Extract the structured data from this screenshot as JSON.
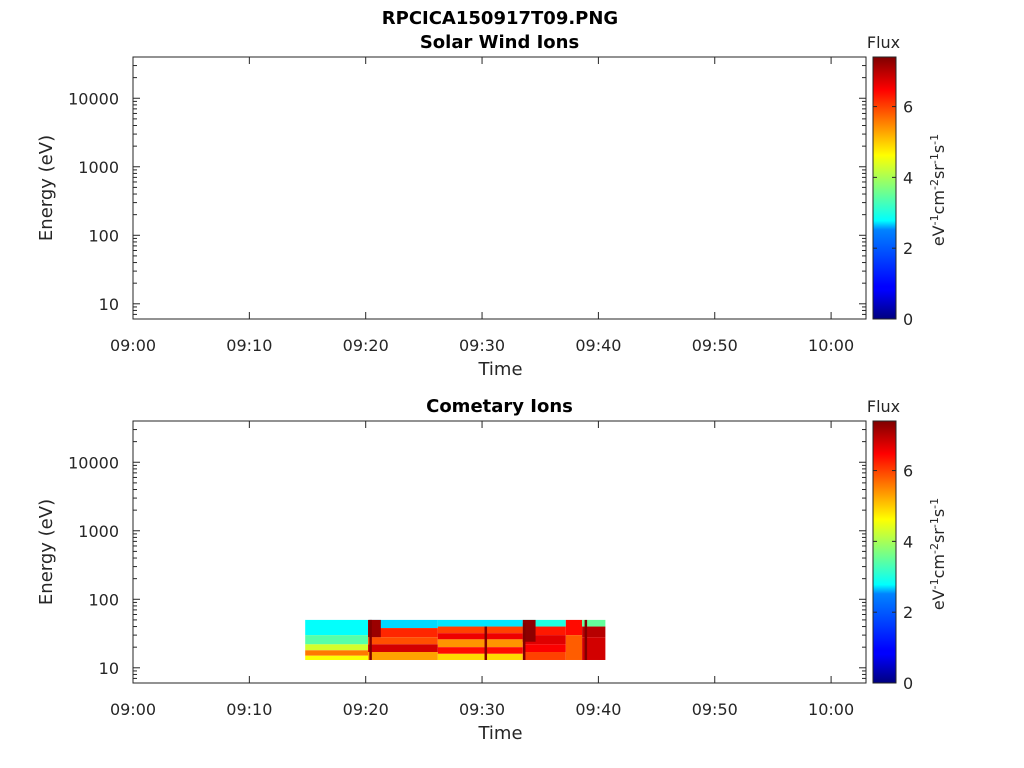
{
  "figure_title": "RPCICA150917T09.PNG",
  "chart_data": [
    {
      "type": "heatmap",
      "title": "Solar Wind Ions",
      "xlabel": "Time",
      "ylabel": "Energy (eV)",
      "x_ticks": [
        "09:00",
        "09:10",
        "09:20",
        "09:30",
        "09:40",
        "09:50",
        "10:00"
      ],
      "x_range_minutes": [
        0,
        63
      ],
      "y_scale": "log",
      "y_ticks": [
        "10",
        "100",
        "1000",
        "10000"
      ],
      "ylim": [
        6,
        40000
      ],
      "colorbar": {
        "title": "Flux",
        "ticks": [
          "0",
          "2",
          "4",
          "6"
        ],
        "range": [
          0,
          7.4
        ],
        "unit_base": [
          "eV",
          "cm",
          "sr",
          "s"
        ],
        "unit_exp": [
          "-1",
          "-2",
          "-1",
          "-1"
        ]
      },
      "blocks": []
    },
    {
      "type": "heatmap",
      "title": "Cometary Ions",
      "xlabel": "Time",
      "ylabel": "Energy (eV)",
      "x_ticks": [
        "09:00",
        "09:10",
        "09:20",
        "09:30",
        "09:40",
        "09:50",
        "10:00"
      ],
      "x_range_minutes": [
        0,
        63
      ],
      "y_scale": "log",
      "y_ticks": [
        "10",
        "100",
        "1000",
        "10000"
      ],
      "ylim": [
        6,
        40000
      ],
      "colorbar": {
        "title": "Flux",
        "ticks": [
          "0",
          "2",
          "4",
          "6"
        ],
        "range": [
          0,
          7.4
        ],
        "unit_base": [
          "eV",
          "cm",
          "sr",
          "s"
        ],
        "unit_exp": [
          "-1",
          "-2",
          "-1",
          "-1"
        ]
      },
      "data_time_range_minutes": [
        14.8,
        40.6
      ],
      "data_energy_range_eV": [
        13,
        50
      ],
      "blocks": [
        {
          "t0": 14.8,
          "t1": 20.2,
          "e0": 30,
          "e1": 50,
          "v": 2.8
        },
        {
          "t0": 14.8,
          "t1": 20.2,
          "e0": 22,
          "e1": 30,
          "v": 3.4
        },
        {
          "t0": 14.8,
          "t1": 20.2,
          "e0": 18,
          "e1": 22,
          "v": 4.3
        },
        {
          "t0": 14.8,
          "t1": 20.2,
          "e0": 15,
          "e1": 18,
          "v": 5.6
        },
        {
          "t0": 14.8,
          "t1": 20.2,
          "e0": 13,
          "e1": 15,
          "v": 4.6
        },
        {
          "t0": 20.2,
          "t1": 26.2,
          "e0": 38,
          "e1": 50,
          "v": 2.5
        },
        {
          "t0": 20.2,
          "t1": 26.2,
          "e0": 28,
          "e1": 38,
          "v": 6.2
        },
        {
          "t0": 20.2,
          "t1": 26.2,
          "e0": 22,
          "e1": 28,
          "v": 5.9
        },
        {
          "t0": 20.2,
          "t1": 26.2,
          "e0": 17,
          "e1": 22,
          "v": 6.8
        },
        {
          "t0": 20.2,
          "t1": 26.2,
          "e0": 13,
          "e1": 17,
          "v": 5.3
        },
        {
          "t0": 20.2,
          "t1": 21.3,
          "e0": 28,
          "e1": 50,
          "v": 7.2
        },
        {
          "t0": 26.2,
          "t1": 33.5,
          "e0": 40,
          "e1": 50,
          "v": 2.6
        },
        {
          "t0": 26.2,
          "t1": 33.5,
          "e0": 32,
          "e1": 40,
          "v": 6.0
        },
        {
          "t0": 26.2,
          "t1": 33.5,
          "e0": 26,
          "e1": 32,
          "v": 6.6
        },
        {
          "t0": 26.2,
          "t1": 33.5,
          "e0": 20,
          "e1": 26,
          "v": 5.4
        },
        {
          "t0": 26.2,
          "t1": 33.5,
          "e0": 16,
          "e1": 20,
          "v": 6.4
        },
        {
          "t0": 26.2,
          "t1": 33.5,
          "e0": 13,
          "e1": 16,
          "v": 4.9
        },
        {
          "t0": 33.5,
          "t1": 37.2,
          "e0": 40,
          "e1": 50,
          "v": 3.0
        },
        {
          "t0": 33.5,
          "t1": 37.2,
          "e0": 30,
          "e1": 40,
          "v": 6.3
        },
        {
          "t0": 33.5,
          "t1": 37.2,
          "e0": 22,
          "e1": 30,
          "v": 6.7
        },
        {
          "t0": 33.5,
          "t1": 37.2,
          "e0": 17,
          "e1": 22,
          "v": 6.5
        },
        {
          "t0": 33.5,
          "t1": 37.2,
          "e0": 13,
          "e1": 17,
          "v": 6.0
        },
        {
          "t0": 33.5,
          "t1": 34.6,
          "e0": 24,
          "e1": 50,
          "v": 7.3
        },
        {
          "t0": 37.2,
          "t1": 38.6,
          "e0": 30,
          "e1": 50,
          "v": 6.4
        },
        {
          "t0": 37.2,
          "t1": 38.6,
          "e0": 13,
          "e1": 30,
          "v": 5.8
        },
        {
          "t0": 38.6,
          "t1": 40.6,
          "e0": 40,
          "e1": 50,
          "v": 3.5
        },
        {
          "t0": 38.6,
          "t1": 40.6,
          "e0": 28,
          "e1": 40,
          "v": 7.0
        },
        {
          "t0": 38.6,
          "t1": 40.6,
          "e0": 13,
          "e1": 28,
          "v": 6.8
        }
      ],
      "streaks": [
        {
          "t": 20.4,
          "e0": 13,
          "e1": 50,
          "v": 7.4
        },
        {
          "t": 30.3,
          "e0": 13,
          "e1": 40,
          "v": 7.4
        },
        {
          "t": 33.6,
          "e0": 13,
          "e1": 45,
          "v": 7.4
        },
        {
          "t": 38.9,
          "e0": 13,
          "e1": 50,
          "v": 7.4
        }
      ]
    }
  ]
}
